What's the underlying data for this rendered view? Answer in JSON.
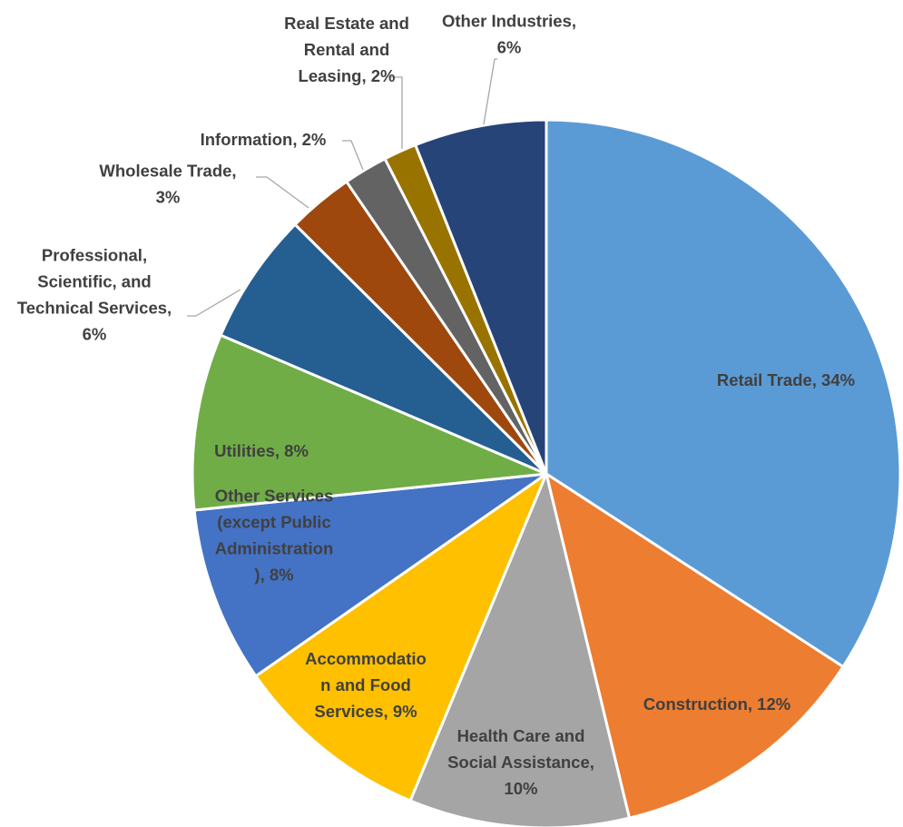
{
  "chart_data": {
    "type": "pie",
    "title": "",
    "start_angle_deg": 0,
    "direction": "clockwise",
    "slices": [
      {
        "name": "Retail Trade",
        "value": 34,
        "label": "Retail Trade, 34%",
        "color": "#5B9BD5"
      },
      {
        "name": "Construction",
        "value": 12,
        "label": "Construction, 12%",
        "color": "#ED7D31"
      },
      {
        "name": "Health Care and Social Assistance",
        "value": 10,
        "label": "Health Care and Social Assistance, 10%",
        "color": "#A5A5A5"
      },
      {
        "name": "Accommodation and Food Services",
        "value": 9,
        "label": "Accommodation and Food Services, 9%",
        "color": "#FFC000"
      },
      {
        "name": "Other Services (except Public Administration)",
        "value": 8,
        "label": "Other Services (except Public Administration), 8%",
        "color": "#4472C4"
      },
      {
        "name": "Utilities",
        "value": 8,
        "label": "Utilities, 8%",
        "color": "#70AD47"
      },
      {
        "name": "Professional, Scientific, and Technical Services",
        "value": 6,
        "label": "Professional, Scientific, and Technical Services, 6%",
        "color": "#255E91"
      },
      {
        "name": "Wholesale Trade",
        "value": 3,
        "label": "Wholesale Trade, 3%",
        "color": "#9E480E"
      },
      {
        "name": "Information",
        "value": 2,
        "label": "Information, 2%",
        "color": "#636363"
      },
      {
        "name": "Real Estate and Rental and Leasing",
        "value": 1.5,
        "label": "Real Estate and Rental and Leasing, 2%",
        "color": "#997300"
      },
      {
        "name": "Other Industries",
        "value": 6,
        "label": "Other Industries, 6%",
        "color": "#264478"
      }
    ]
  }
}
